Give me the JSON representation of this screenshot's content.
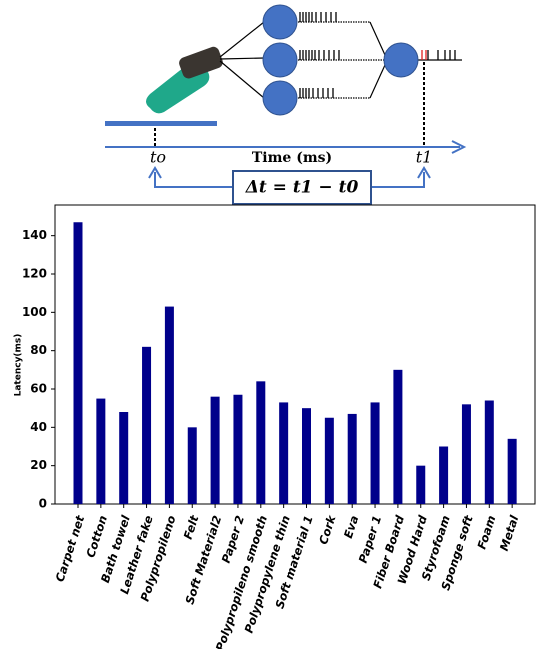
{
  "diagram": {
    "t0_label": "to",
    "axis_label": "Time (ms)",
    "t1_label": "t1",
    "formula": "Δt = t1 − t0"
  },
  "chart_data": {
    "type": "bar",
    "y_label": "Latency(ms)",
    "categories": [
      "Carpet net",
      "Cotton",
      "Bath towel",
      "Leather fake",
      "Polypropileno",
      "Felt",
      "Soft Material2",
      "Paper 2",
      "Polypropileno smooth",
      "Polypropylene thin",
      "Soft material 1",
      "Cork",
      "Eva",
      "Paper 1",
      "Fiber Board",
      "Wood Hard",
      "Styrofoam",
      "Sponge soft",
      "Foam",
      "Metal"
    ],
    "values": [
      147,
      55,
      48,
      82,
      103,
      40,
      56,
      57,
      64,
      53,
      50,
      45,
      47,
      53,
      70,
      20,
      30,
      52,
      54,
      34
    ],
    "color": "#00008b",
    "ylim": [
      0,
      156
    ],
    "yticks": [
      0,
      20,
      40,
      60,
      80,
      100,
      120,
      140
    ],
    "grid": false
  }
}
